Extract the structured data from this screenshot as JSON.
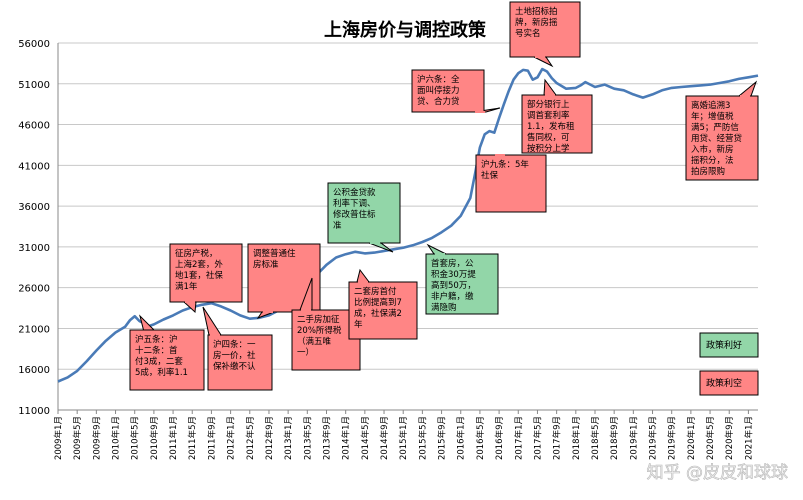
{
  "chart_data": {
    "type": "line",
    "title": "上海房价与调控政策",
    "ylim": [
      11000,
      56000
    ],
    "yticks": [
      11000,
      16000,
      21000,
      26000,
      31000,
      36000,
      41000,
      46000,
      51000,
      56000
    ],
    "x_labels": [
      "2009年1月",
      "2009年5月",
      "2009年9月",
      "2010年1月",
      "2010年5月",
      "2010年9月",
      "2011年1月",
      "2011年5月",
      "2011年9月",
      "2012年1月",
      "2012年5月",
      "2012年9月",
      "2013年1月",
      "2013年5月",
      "2013年9月",
      "2014年1月",
      "2014年5月",
      "2014年9月",
      "2015年1月",
      "2015年5月",
      "2015年9月",
      "2016年1月",
      "2016年5月",
      "2016年9月",
      "2017年1月",
      "2017年5月",
      "2017年9月",
      "2018年1月",
      "2018年5月",
      "2018年9月",
      "2019年1月",
      "2019年5月",
      "2019年9月",
      "2020年1月",
      "2020年5月",
      "2020年9月",
      "2021年1月"
    ],
    "series": [
      {
        "color": "#4a7bb7",
        "x": [
          "2009年1月",
          "2009年3月",
          "2009年5月",
          "2009年7月",
          "2009年9月",
          "2009年11月",
          "2010年1月",
          "2010年3月",
          "2010年4月",
          "2010年5月",
          "2010年6月",
          "2010年8月",
          "2010年9月",
          "2010年11月",
          "2011年1月",
          "2011年3月",
          "2011年5月",
          "2011年7月",
          "2011年9月",
          "2011年11月",
          "2012年1月",
          "2012年3月",
          "2012年5月",
          "2012年7月",
          "2012年9月",
          "2012年11月",
          "2013年1月",
          "2013年3月",
          "2013年5月",
          "2013年7月",
          "2013年9月",
          "2013年11月",
          "2014年1月",
          "2014年3月",
          "2014年5月",
          "2014年7月",
          "2014年9月",
          "2014年11月",
          "2015年1月",
          "2015年3月",
          "2015年5月",
          "2015年7月",
          "2015年9月",
          "2015年11月",
          "2016年1月",
          "2016年3月",
          "2016年4月",
          "2016年5月",
          "2016年6月",
          "2016年7月",
          "2016年8月",
          "2016年9月",
          "2016年10月",
          "2016年11月",
          "2016年12月",
          "2017年1月",
          "2017年2月",
          "2017年3月",
          "2017年4月",
          "2017年5月",
          "2017年6月",
          "2017年7月",
          "2017年8月",
          "2017年9月",
          "2017年11月",
          "2018年1月",
          "2018年2月",
          "2018年3月",
          "2018年5月",
          "2018年7月",
          "2018年9月",
          "2018年11月",
          "2019年1月",
          "2019年3月",
          "2019年5月",
          "2019年7月",
          "2019年9月",
          "2019年11月",
          "2020年1月",
          "2020年3月",
          "2020年5月",
          "2020年7月",
          "2020年9月",
          "2020年11月",
          "2021年1月",
          "2021年3月"
        ],
        "y": [
          14500,
          15000,
          15800,
          17000,
          18300,
          19500,
          20500,
          21200,
          22000,
          22500,
          21900,
          21300,
          21500,
          22100,
          22600,
          23200,
          23600,
          23900,
          24100,
          23700,
          23200,
          22600,
          22200,
          22300,
          22600,
          23200,
          24000,
          25200,
          26500,
          27600,
          28800,
          29700,
          30100,
          30400,
          30200,
          30300,
          30500,
          30700,
          30900,
          31200,
          31600,
          32100,
          32800,
          33600,
          34800,
          37000,
          40000,
          43200,
          44800,
          45200,
          45000,
          46800,
          48500,
          50100,
          51500,
          52300,
          52700,
          52600,
          51500,
          51800,
          52800,
          52500,
          51700,
          51100,
          50400,
          50500,
          50800,
          51200,
          50600,
          50900,
          50400,
          50200,
          49700,
          49300,
          49700,
          50200,
          50500,
          50600,
          50700,
          50800,
          50900,
          51100,
          51300,
          51600,
          51800,
          52000
        ]
      }
    ],
    "annotations": [
      {
        "lines": [
          "沪五条：沪",
          "十二条：首",
          "付3成，二套",
          "5成，利率1.1"
        ],
        "type": "bearish",
        "anchor": "2010年6月"
      },
      {
        "lines": [
          "征房产税，",
          "上海2套，外",
          "地1套，社保",
          "满1年"
        ],
        "type": "bearish",
        "anchor": "2011年3月"
      },
      {
        "lines": [
          "沪四条：一",
          "房一价，社",
          "保补缴不认"
        ],
        "type": "bearish",
        "anchor": "2011年5月"
      },
      {
        "lines": [
          "调整普通住",
          "房标准"
        ],
        "type": "bearish",
        "anchor": "2012年7月"
      },
      {
        "lines": [
          "二手房加征",
          "20%所得税",
          "（满五唯",
          "一）"
        ],
        "type": "bearish",
        "anchor": "2013年3月"
      },
      {
        "lines": [
          "公积金贷款",
          "利率下调、",
          "修改普住标",
          "准"
        ],
        "type": "bullish",
        "anchor": "2014年9月"
      },
      {
        "lines": [
          "二套房首付",
          "比例提高到7",
          "成，社保满2",
          "年"
        ],
        "type": "bearish",
        "anchor": "2013年9月"
      },
      {
        "lines": [
          "首套房，公",
          "积金30万提",
          "高到50万，",
          "非户籍，缴",
          "满隐购"
        ],
        "type": "bullish",
        "anchor": "2015年1月"
      },
      {
        "lines": [
          "沪六条：全",
          "面叫停接力",
          "贷、合力贷"
        ],
        "type": "bearish",
        "anchor": "2016年3月"
      },
      {
        "lines": [
          "沪九条：5年",
          "社保"
        ],
        "type": "bearish",
        "anchor": "2016年3月"
      },
      {
        "lines": [
          "土地招标拍",
          "牌，新房摇",
          "号实名"
        ],
        "type": "bearish",
        "anchor": "2017年5月"
      },
      {
        "lines": [
          "部分银行上",
          "调首套利率",
          "1.1，发布租",
          "售同权，可",
          "按积分上学"
        ],
        "type": "bearish",
        "anchor": "2017年1月"
      },
      {
        "lines": [
          "离婚追溯3",
          "年；增值税",
          "满5；严防信",
          "用贷、经营贷",
          "入市，新房",
          "摇积分，法",
          "拍房限购"
        ],
        "type": "bearish",
        "anchor": "2021年1月"
      }
    ],
    "legend": [
      {
        "label": "政策利好",
        "color": "#92d6a8"
      },
      {
        "label": "政策利空",
        "color": "#ff8585"
      }
    ],
    "watermark": "知乎 @皮皮和球球"
  }
}
